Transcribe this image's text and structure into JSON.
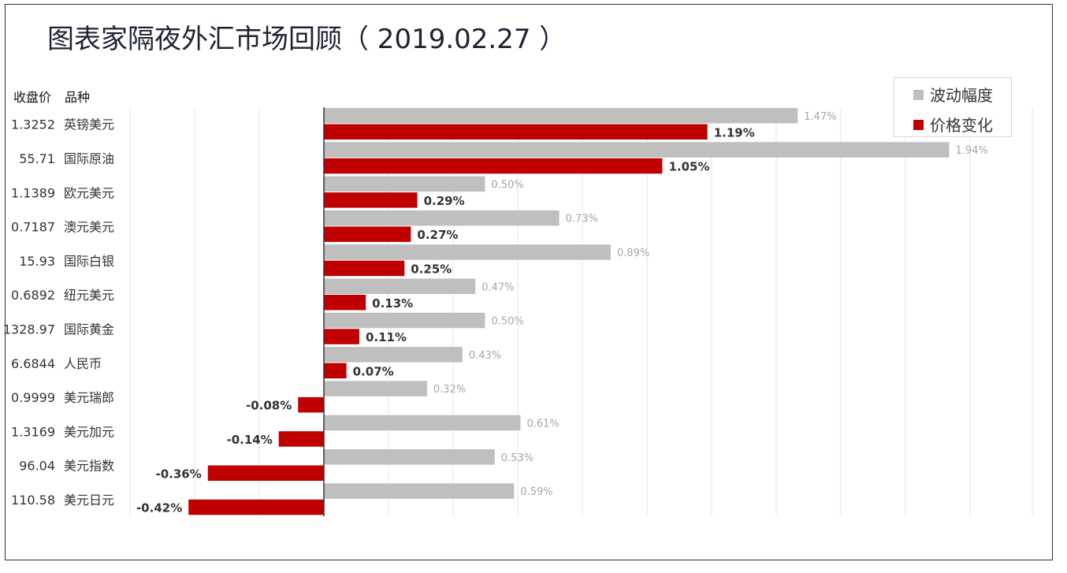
{
  "title": "图表家隔夜外汇市场回顾（ 2019.02.27 ）",
  "headers": {
    "close": "收盘价",
    "item": "品种"
  },
  "colors": {
    "volatility": "#bfbfbf",
    "change": "#c00000",
    "axis": "#333333",
    "grid": "#e6e6e6"
  },
  "chart_data": {
    "type": "bar",
    "orientation": "horizontal",
    "title": "图表家隔夜外汇市场回顾（ 2019.02.27 ）",
    "categories": [
      "英镑美元",
      "国际原油",
      "欧元美元",
      "澳元美元",
      "国际白银",
      "纽元美元",
      "国际黄金",
      "人民币",
      "美元瑞郎",
      "美元加元",
      "美元指数",
      "美元日元"
    ],
    "close_prices": [
      "1.3252",
      "55.71",
      "1.1389",
      "0.7187",
      "15.93",
      "0.6892",
      "1328.97",
      "6.6844",
      "0.9999",
      "1.3169",
      "96.04",
      "110.58"
    ],
    "series": [
      {
        "name": "波动幅度",
        "values": [
          1.47,
          1.94,
          0.5,
          0.73,
          0.89,
          0.47,
          0.5,
          0.43,
          0.32,
          0.61,
          0.53,
          0.59
        ],
        "labels": [
          "1.47%",
          "1.94%",
          "0.50%",
          "0.73%",
          "0.89%",
          "0.47%",
          "0.50%",
          "0.43%",
          "0.32%",
          "0.61%",
          "0.53%",
          "0.59%"
        ]
      },
      {
        "name": "价格变化",
        "values": [
          1.19,
          1.05,
          0.29,
          0.27,
          0.25,
          0.13,
          0.11,
          0.07,
          -0.08,
          -0.14,
          -0.36,
          -0.42
        ],
        "labels": [
          "1.19%",
          "1.05%",
          "0.29%",
          "0.27%",
          "0.25%",
          "0.13%",
          "0.11%",
          "0.07%",
          "-0.08%",
          "-0.14%",
          "-0.36%",
          "-0.42%"
        ]
      }
    ],
    "xlim": [
      -0.6,
      2.2
    ],
    "grid": true,
    "legend_position": "top-right"
  }
}
